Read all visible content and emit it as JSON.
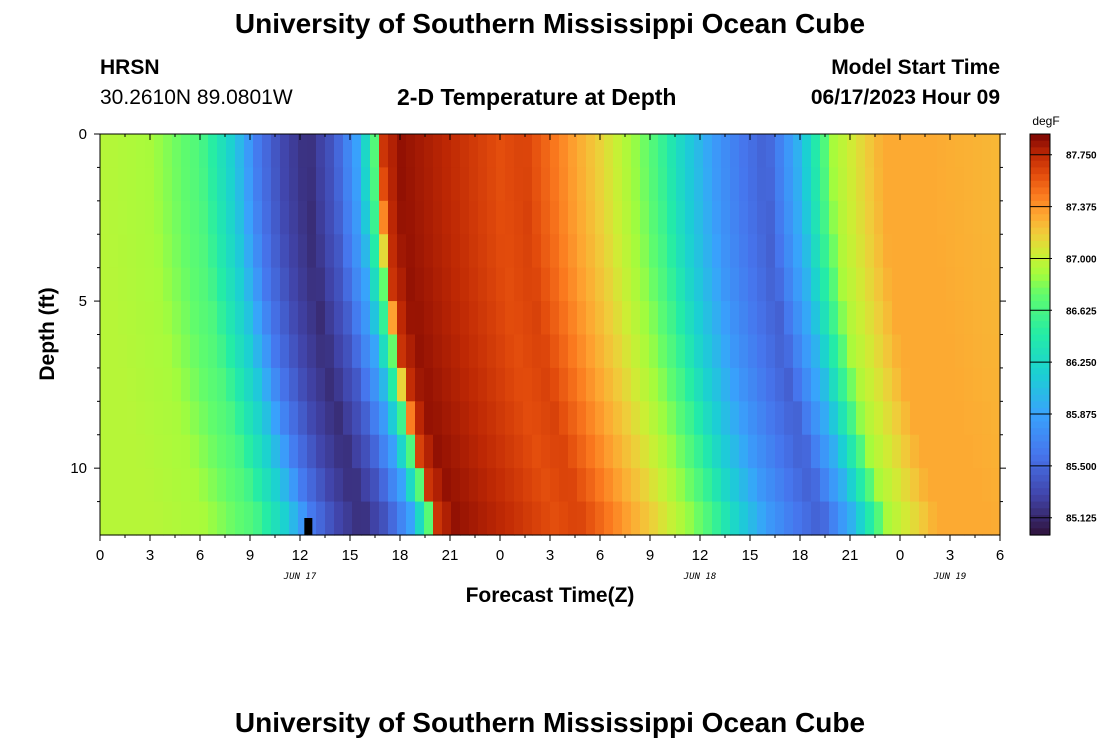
{
  "header": {
    "title": "University of Southern Mississippi Ocean Cube",
    "station": "HRSN",
    "coords": "30.2610N  89.0801W",
    "model_label": "Model Start Time",
    "model_time": "06/17/2023 Hour 09"
  },
  "footer": {
    "title": "University of Southern Mississippi Ocean Cube"
  },
  "chart_data": {
    "type": "heatmap",
    "title": "2-D Temperature at Depth",
    "xlabel": "Forecast Time(Z)",
    "ylabel": "Depth (ft)",
    "x_range_hours": [
      0,
      54
    ],
    "y_range_ft": [
      0,
      12
    ],
    "x_ticks": [
      "0",
      "3",
      "6",
      "9",
      "12",
      "15",
      "18",
      "21",
      "0",
      "3",
      "6",
      "9",
      "12",
      "15",
      "18",
      "21",
      "0",
      "3",
      "6"
    ],
    "y_ticks": [
      "0",
      "5",
      "10"
    ],
    "date_labels": [
      "JUN 17",
      "JUN 18",
      "JUN 19"
    ],
    "date_label_hours": [
      12,
      36,
      51
    ],
    "colorbar": {
      "unit": "degF",
      "min": 85.0,
      "max": 87.9,
      "ticks": [
        "87.750",
        "87.375",
        "87.000",
        "86.625",
        "86.250",
        "85.875",
        "85.500",
        "85.125"
      ],
      "tick_values": [
        87.75,
        87.375,
        87.0,
        86.625,
        86.25,
        85.875,
        85.5,
        85.125
      ]
    },
    "surface_profile": {
      "time_hours": [
        0,
        3,
        6,
        8,
        9.5,
        11,
        12.5,
        14,
        15.5,
        16.5,
        17,
        18,
        21,
        24,
        25.5,
        27,
        30,
        32.5,
        33.5,
        35,
        37,
        38.5,
        40,
        42,
        44,
        47,
        50,
        54
      ],
      "temp_degF": [
        86.95,
        86.9,
        86.65,
        86.15,
        85.6,
        85.3,
        85.15,
        85.4,
        85.9,
        86.7,
        87.7,
        87.85,
        87.75,
        87.6,
        87.65,
        87.5,
        87.15,
        86.8,
        86.6,
        86.2,
        85.8,
        85.6,
        85.45,
        86.0,
        86.9,
        87.3,
        87.3,
        87.25
      ]
    },
    "depth_shift_hours_at_max_depth": 3.5,
    "marker_hour": 12.5
  }
}
